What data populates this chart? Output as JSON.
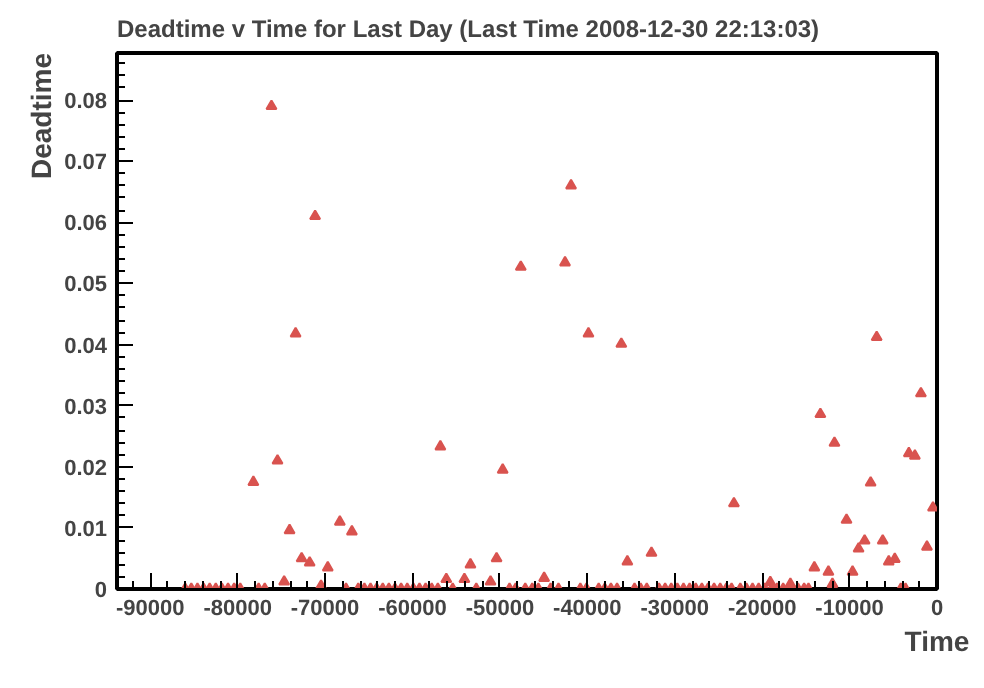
{
  "chart_data": {
    "type": "scatter",
    "title": "Deadtime v Time for Last Day (Last Time 2008-12-30 22:13:03)",
    "xlabel": "Time",
    "ylabel": "Deadtime",
    "marker": "triangle",
    "grid": false,
    "xlim": [
      -93800,
      0
    ],
    "ylim": [
      0,
      0.0877
    ],
    "xticks": [
      -90000,
      -80000,
      -70000,
      -60000,
      -50000,
      -40000,
      -30000,
      -20000,
      -10000,
      0
    ],
    "yticks": [
      0,
      0.01,
      0.02,
      0.03,
      0.04,
      0.05,
      0.06,
      0.07,
      0.08
    ],
    "series": [
      {
        "color": "#d9534f",
        "x": [
          -76130,
          -71140,
          -73370,
          -78200,
          -75440,
          -74060,
          -72680,
          -71760,
          -74680,
          -68310,
          -66930,
          -69690,
          -47610,
          -56810,
          -49680,
          -50380,
          -53370,
          -56130,
          -54060,
          -51070,
          -70460,
          -41860,
          -42550,
          -39870,
          -36110,
          -23230,
          -13340,
          -11730,
          -6900,
          -1840,
          -3220,
          -2530,
          -7590,
          -10350,
          -460,
          -8280,
          -6210,
          -8970,
          -1150,
          -5520,
          -4830,
          -14030,
          -12420,
          -9660,
          -35420,
          -32660,
          -44940,
          -19070,
          -16770,
          -11960,
          -4140,
          -86000,
          -85300,
          -84600,
          -83900,
          -83200,
          -82500,
          -81800,
          -81100,
          -80400,
          -79700,
          -77600,
          -76900,
          -67600,
          -66200,
          -65500,
          -64800,
          -64100,
          -63400,
          -62700,
          -62000,
          -61300,
          -60600,
          -59900,
          -59200,
          -58500,
          -57800,
          -55400,
          -52700,
          -48900,
          -48200,
          -47100,
          -46300,
          -45600,
          -44200,
          -43300,
          -40800,
          -40100,
          -38700,
          -38000,
          -37300,
          -36600,
          -34600,
          -33900,
          -33200,
          -31800,
          -31100,
          -30400,
          -29700,
          -29000,
          -28300,
          -27600,
          -26900,
          -26200,
          -25500,
          -24800,
          -24100,
          -22500,
          -21800,
          -21100,
          -20400,
          -19700,
          -18300,
          -17600,
          -15900,
          -15200,
          -14700,
          -3600,
          -18900,
          -23500,
          -57100
        ],
        "values": [
          0.079,
          0.061,
          0.0418,
          0.0175,
          0.021,
          0.0096,
          0.005,
          0.0043,
          0.0012,
          0.011,
          0.0094,
          0.0035,
          0.0527,
          0.0233,
          0.0195,
          0.005,
          0.004,
          0.0016,
          0.0016,
          0.0012,
          0.0005,
          0.066,
          0.0534,
          0.0418,
          0.0401,
          0.014,
          0.0286,
          0.0239,
          0.0412,
          0.032,
          0.0222,
          0.0218,
          0.0174,
          0.0113,
          0.0133,
          0.0079,
          0.0079,
          0.0066,
          0.0069,
          0.0045,
          0.0049,
          0.0035,
          0.0028,
          0.0028,
          0.0045,
          0.0059,
          0.0018,
          0.0011,
          0.0008,
          0.0008,
          0,
          0,
          0,
          0,
          0,
          0,
          0,
          0,
          0,
          0,
          0,
          0,
          0,
          0,
          0,
          0,
          0,
          0,
          0,
          0,
          0,
          0,
          0,
          0,
          0,
          0,
          0,
          0,
          0,
          0,
          0,
          0,
          0,
          0,
          0,
          0,
          0,
          0,
          0,
          0,
          0,
          0,
          0,
          0,
          0,
          0,
          0,
          0,
          0,
          0,
          0,
          0,
          0,
          0,
          0,
          0,
          0,
          0,
          0,
          0,
          0,
          0,
          0,
          0,
          0,
          0,
          0,
          0,
          0,
          0,
          0
        ]
      }
    ]
  }
}
